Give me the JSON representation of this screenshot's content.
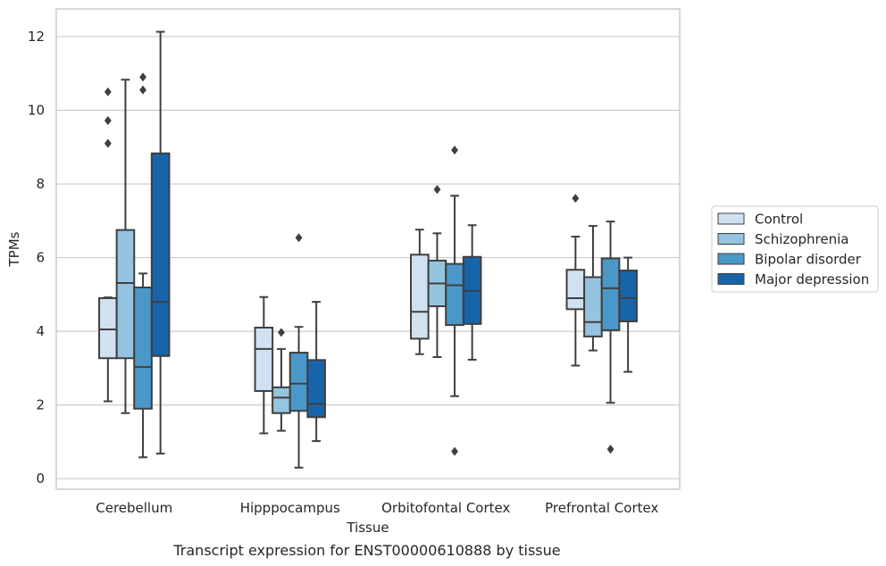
{
  "chart_data": {
    "type": "box",
    "caption": "Transcript expression for ENST00000610888 by tissue",
    "xlabel": "Tissue",
    "ylabel": "TPMs",
    "ylim": [
      -0.25,
      12.7
    ],
    "yticks": [
      0,
      2,
      4,
      6,
      8,
      10,
      12
    ],
    "grid": "horizontal",
    "legend_position": "right",
    "categories": [
      "Cerebellum",
      "Hipppocampus",
      "Orbitofontal Cortex",
      "Prefrontal Cortex"
    ],
    "series": [
      {
        "name": "Control",
        "color": "#d0e1f2",
        "boxes": [
          {
            "whisker_low": 2.1,
            "q1": 3.27,
            "median": 4.05,
            "q3": 4.9,
            "whisker_high": 4.92,
            "outliers": [
              9.1,
              9.72,
              10.5
            ]
          },
          {
            "whisker_low": 1.23,
            "q1": 2.38,
            "median": 3.52,
            "q3": 4.1,
            "whisker_high": 4.93,
            "outliers": []
          },
          {
            "whisker_low": 3.38,
            "q1": 3.8,
            "median": 4.53,
            "q3": 6.08,
            "whisker_high": 6.76,
            "outliers": []
          },
          {
            "whisker_low": 3.07,
            "q1": 4.6,
            "median": 4.9,
            "q3": 5.67,
            "whisker_high": 6.57,
            "outliers": [
              7.61
            ]
          }
        ]
      },
      {
        "name": "Schizophrenia",
        "color": "#94c4df",
        "boxes": [
          {
            "whisker_low": 1.78,
            "q1": 3.27,
            "median": 5.31,
            "q3": 6.75,
            "whisker_high": 10.83,
            "outliers": []
          },
          {
            "whisker_low": 1.3,
            "q1": 1.78,
            "median": 2.2,
            "q3": 2.48,
            "whisker_high": 3.52,
            "outliers": [
              3.97
            ]
          },
          {
            "whisker_low": 3.3,
            "q1": 4.68,
            "median": 5.3,
            "q3": 5.92,
            "whisker_high": 6.66,
            "outliers": [
              7.85
            ]
          },
          {
            "whisker_low": 3.48,
            "q1": 3.86,
            "median": 4.25,
            "q3": 5.47,
            "whisker_high": 6.86,
            "outliers": []
          }
        ]
      },
      {
        "name": "Bipolar disorder",
        "color": "#4a98c9",
        "boxes": [
          {
            "whisker_low": 0.58,
            "q1": 1.9,
            "median": 3.03,
            "q3": 5.19,
            "whisker_high": 5.57,
            "outliers": [
              10.55,
              10.9
            ]
          },
          {
            "whisker_low": 0.3,
            "q1": 1.84,
            "median": 2.58,
            "q3": 3.42,
            "whisker_high": 4.12,
            "outliers": [
              6.54
            ]
          },
          {
            "whisker_low": 2.24,
            "q1": 4.17,
            "median": 5.25,
            "q3": 5.83,
            "whisker_high": 7.68,
            "outliers": [
              0.74,
              8.92
            ]
          },
          {
            "whisker_low": 2.06,
            "q1": 4.03,
            "median": 5.17,
            "q3": 5.98,
            "whisker_high": 6.98,
            "outliers": [
              0.8
            ]
          }
        ]
      },
      {
        "name": "Major depression",
        "color": "#1764ab",
        "boxes": [
          {
            "whisker_low": 0.68,
            "q1": 3.33,
            "median": 4.8,
            "q3": 8.83,
            "whisker_high": 12.13,
            "outliers": []
          },
          {
            "whisker_low": 1.02,
            "q1": 1.67,
            "median": 2.03,
            "q3": 3.22,
            "whisker_high": 4.8,
            "outliers": []
          },
          {
            "whisker_low": 3.23,
            "q1": 4.2,
            "median": 5.1,
            "q3": 6.02,
            "whisker_high": 6.88,
            "outliers": []
          },
          {
            "whisker_low": 2.9,
            "q1": 4.27,
            "median": 4.9,
            "q3": 5.65,
            "whisker_high": 6.0,
            "outliers": []
          }
        ]
      }
    ]
  }
}
